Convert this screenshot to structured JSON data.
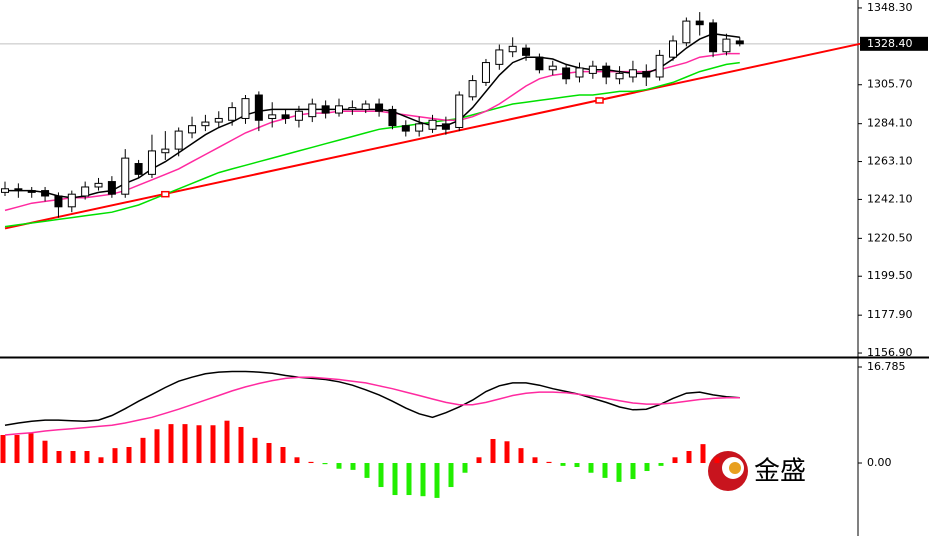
{
  "chart_data": [
    {
      "type": "candlestick",
      "ylim": [
        1154.7,
        1352.7
      ],
      "yticks": [
        {
          "value": 1348.3,
          "label": "1348.30"
        },
        {
          "value": 1305.7,
          "label": "1305.70"
        },
        {
          "value": 1284.1,
          "label": "1284.10"
        },
        {
          "value": 1263.1,
          "label": "1263.10"
        },
        {
          "value": 1242.1,
          "label": "1242.10"
        },
        {
          "value": 1220.5,
          "label": "1220.50"
        },
        {
          "value": 1199.5,
          "label": "1199.50"
        },
        {
          "value": 1177.9,
          "label": "1177.90"
        },
        {
          "value": 1156.9,
          "label": "1156.90"
        }
      ],
      "last_price": {
        "value": 1328.4,
        "label": "1328.40"
      },
      "up_color": "#ffffff",
      "down_color": "#000000",
      "open": [
        1246,
        1248,
        1247,
        1247,
        1244,
        1238,
        1244,
        1249,
        1252,
        1245,
        1262,
        1256,
        1268,
        1270,
        1279,
        1283,
        1285,
        1286,
        1287,
        1300,
        1287,
        1289,
        1286,
        1288,
        1294,
        1290,
        1292,
        1292,
        1295,
        1292,
        1283,
        1280,
        1281,
        1284,
        1282,
        1299,
        1307,
        1317,
        1324,
        1326,
        1321,
        1314,
        1315,
        1310,
        1312,
        1316,
        1309,
        1310,
        1313,
        1310,
        1321,
        1329,
        1341,
        1340,
        1324,
        1330
      ],
      "high": [
        1252,
        1251,
        1249,
        1249,
        1246,
        1247,
        1252,
        1254,
        1255,
        1270,
        1264,
        1278,
        1280,
        1282,
        1288,
        1289,
        1291,
        1296,
        1300,
        1302,
        1296,
        1292,
        1294,
        1298,
        1297,
        1298,
        1297,
        1297,
        1298,
        1294,
        1286,
        1288,
        1289,
        1288,
        1302,
        1311,
        1320,
        1328,
        1332,
        1328,
        1323,
        1319,
        1317,
        1318,
        1319,
        1318,
        1316,
        1319,
        1317,
        1325,
        1333,
        1343,
        1346,
        1342,
        1334,
        1332
      ],
      "low": [
        1244,
        1243,
        1243,
        1241,
        1232,
        1235,
        1242,
        1247,
        1243,
        1243,
        1254,
        1254,
        1264,
        1266,
        1276,
        1280,
        1282,
        1283,
        1284,
        1280,
        1282,
        1284,
        1282,
        1285,
        1287,
        1288,
        1289,
        1290,
        1288,
        1281,
        1277,
        1277,
        1279,
        1278,
        1280,
        1297,
        1305,
        1314,
        1321,
        1319,
        1312,
        1311,
        1306,
        1307,
        1309,
        1306,
        1306,
        1307,
        1305,
        1308,
        1319,
        1327,
        1333,
        1321,
        1322,
        1327
      ],
      "close": [
        1248,
        1247,
        1246,
        1244,
        1238,
        1245,
        1249,
        1251,
        1245,
        1265,
        1256,
        1269,
        1270,
        1280,
        1283,
        1285,
        1287,
        1293,
        1298,
        1286,
        1289,
        1287,
        1291,
        1295,
        1290,
        1294,
        1293,
        1295,
        1291,
        1283,
        1280,
        1284,
        1286,
        1281,
        1300,
        1308,
        1318,
        1325,
        1327,
        1322,
        1314,
        1316,
        1309,
        1315,
        1316,
        1310,
        1312,
        1314,
        1310,
        1322,
        1330,
        1341,
        1339,
        1324,
        1331,
        1328.4
      ],
      "series": [
        {
          "color": "#000000",
          "values": [
            1247,
            1247,
            1247,
            1246,
            1244,
            1243,
            1244,
            1246,
            1247,
            1251,
            1254,
            1259,
            1263,
            1268,
            1273,
            1278,
            1282,
            1285,
            1289,
            1291,
            1292,
            1292,
            1292,
            1292,
            1292,
            1292,
            1292,
            1292,
            1292,
            1291,
            1288,
            1285,
            1283,
            1283,
            1286,
            1293,
            1302,
            1311,
            1318,
            1321,
            1321,
            1320,
            1317,
            1315,
            1314,
            1314,
            1313,
            1312,
            1312,
            1315,
            1320,
            1326,
            1331,
            1334,
            1333,
            1332
          ]
        },
        {
          "color": "#ff2aa0",
          "values": [
            1236,
            1238,
            1240,
            1241,
            1242,
            1243,
            1243,
            1244,
            1245,
            1247,
            1250,
            1253,
            1256,
            1259,
            1263,
            1267,
            1271,
            1275,
            1279,
            1282,
            1285,
            1287,
            1289,
            1290,
            1290,
            1291,
            1291,
            1291,
            1291,
            1290,
            1289,
            1288,
            1287,
            1286,
            1286,
            1288,
            1291,
            1295,
            1300,
            1305,
            1309,
            1311,
            1312,
            1313,
            1313,
            1313,
            1313,
            1313,
            1313,
            1314,
            1316,
            1318,
            1321,
            1322,
            1323,
            1323
          ]
        },
        {
          "color": "#00e000",
          "values": [
            1227,
            1228,
            1229,
            1230,
            1231,
            1232,
            1233,
            1234,
            1235,
            1237,
            1239,
            1242,
            1245,
            1248,
            1251,
            1254,
            1257,
            1259,
            1261,
            1263,
            1265,
            1267,
            1269,
            1271,
            1273,
            1275,
            1277,
            1279,
            1281,
            1282,
            1283,
            1284,
            1285,
            1286,
            1287,
            1289,
            1291,
            1293,
            1295,
            1296,
            1297,
            1298,
            1299,
            1300,
            1300,
            1301,
            1302,
            1302,
            1303,
            1305,
            1307,
            1310,
            1313,
            1315,
            1317,
            1318
          ]
        }
      ],
      "trendline": {
        "color": "#ff0000",
        "x": [
          0,
          64
        ],
        "y": [
          1226,
          1328.4
        ]
      },
      "markers": {
        "color": "#ff0000",
        "x": [
          12,
          44.5
        ],
        "y": [
          1245,
          1297
        ]
      }
    },
    {
      "type": "macd",
      "ylim": [
        -12.76,
        18.01
      ],
      "yticks": [
        16.785,
        {
          "value": 0,
          "label": "0.00"
        }
      ],
      "pos_color": "#ff0000",
      "neg_color": "#22ee00",
      "histogram": [
        4.9,
        4.9,
        5.2,
        3.9,
        2.1,
        2.1,
        2.1,
        1.0,
        2.6,
        2.8,
        4.4,
        5.9,
        6.8,
        6.8,
        6.6,
        6.6,
        7.4,
        6.3,
        4.4,
        3.5,
        2.8,
        1.0,
        0.2,
        -0.2,
        -1.0,
        -1.2,
        -2.6,
        -4.2,
        -5.6,
        -5.6,
        -5.8,
        -6.1,
        -4.2,
        -1.7,
        1.0,
        4.2,
        3.8,
        2.6,
        1.0,
        0.2,
        -0.5,
        -0.7,
        -1.7,
        -2.6,
        -3.3,
        -2.8,
        -1.4,
        -0.5,
        1.0,
        2.1,
        3.3,
        1.0
      ],
      "series": [
        {
          "color": "#000000",
          "values": [
            6.6,
            7.0,
            7.3,
            7.5,
            7.5,
            7.4,
            7.3,
            7.5,
            8.3,
            9.5,
            10.8,
            12.0,
            13.2,
            14.3,
            15.0,
            15.6,
            15.9,
            16.0,
            16.0,
            15.9,
            15.7,
            15.3,
            15.0,
            14.8,
            14.6,
            14.2,
            13.6,
            12.8,
            11.9,
            10.8,
            9.6,
            8.6,
            8.0,
            8.8,
            9.8,
            11.0,
            12.5,
            13.5,
            14.0,
            14.0,
            13.6,
            13.0,
            12.5,
            12.0,
            11.3,
            10.6,
            9.8,
            9.3,
            9.4,
            10.2,
            11.3,
            12.2,
            12.4,
            11.9,
            11.6,
            11.4
          ]
        },
        {
          "color": "#ff2aa0",
          "values": [
            4.9,
            5.1,
            5.3,
            5.6,
            5.8,
            6.0,
            6.2,
            6.4,
            6.6,
            7.0,
            7.5,
            8.0,
            8.7,
            9.4,
            10.2,
            11.0,
            11.8,
            12.6,
            13.3,
            13.9,
            14.4,
            14.8,
            15.0,
            15.0,
            14.8,
            14.6,
            14.3,
            14.0,
            13.5,
            13.0,
            12.4,
            11.8,
            11.2,
            10.6,
            10.2,
            10.2,
            10.6,
            11.2,
            11.8,
            12.2,
            12.4,
            12.4,
            12.3,
            12.0,
            11.7,
            11.3,
            10.9,
            10.5,
            10.3,
            10.3,
            10.5,
            10.8,
            11.1,
            11.3,
            11.4,
            11.4
          ]
        }
      ]
    }
  ],
  "logo_text": "金盛"
}
